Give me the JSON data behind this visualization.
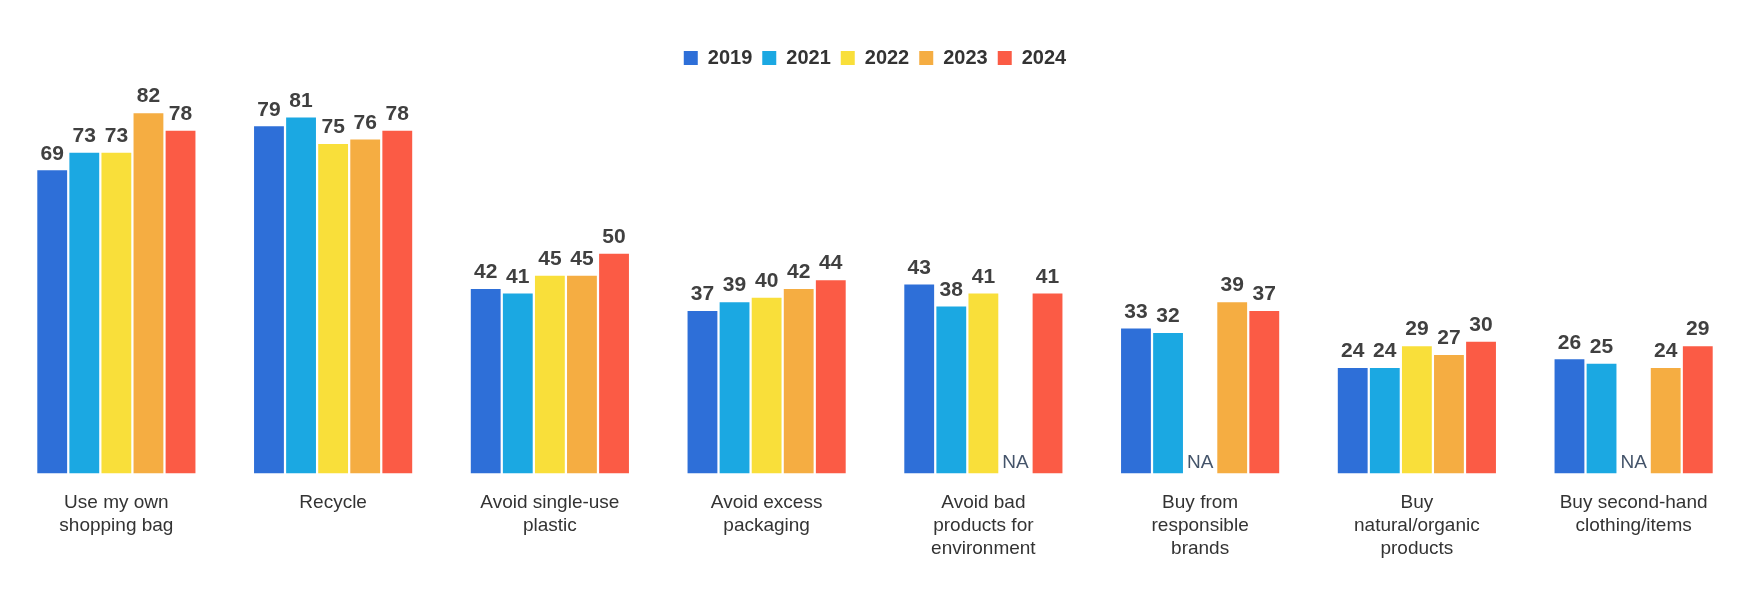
{
  "chart_data": {
    "type": "bar",
    "categories": [
      "Use my own shopping bag",
      "Recycle",
      "Avoid single-use plastic",
      "Avoid excess packaging",
      "Avoid bad products for environment",
      "Buy from responsible brands",
      "Buy natural/organic products",
      "Buy second-hand clothing/items"
    ],
    "series": [
      {
        "name": "2019",
        "color": "#2e6fd8",
        "values": [
          69,
          79,
          42,
          37,
          43,
          33,
          24,
          26
        ],
        "value_labels": [
          "69",
          "79",
          "42",
          "37",
          "43",
          "33",
          "24",
          "26"
        ]
      },
      {
        "name": "2021",
        "color": "#1ba8e2",
        "values": [
          73,
          81,
          41,
          39,
          38,
          32,
          24,
          25
        ],
        "value_labels": [
          "73",
          "81",
          "41",
          "39",
          "38",
          "32",
          "24",
          "25"
        ]
      },
      {
        "name": "2022",
        "color": "#f9df3a",
        "values": [
          73,
          75,
          45,
          40,
          41,
          null,
          29,
          null
        ],
        "value_labels": [
          "73",
          "75",
          "45",
          "40",
          "41",
          "NA",
          "29",
          "NA"
        ]
      },
      {
        "name": "2023",
        "color": "#f5ad42",
        "values": [
          82,
          76,
          45,
          42,
          null,
          39,
          27,
          24
        ],
        "value_labels": [
          "82",
          "76",
          "45",
          "42",
          "NA",
          "39",
          "27",
          "24"
        ]
      },
      {
        "name": "2024",
        "color": "#fb5b45",
        "values": [
          78,
          78,
          50,
          44,
          41,
          37,
          30,
          29
        ],
        "value_labels": [
          "78",
          "78",
          "50",
          "44",
          "41",
          "37",
          "30",
          "29"
        ]
      }
    ],
    "legend": "top",
    "grid": false
  }
}
